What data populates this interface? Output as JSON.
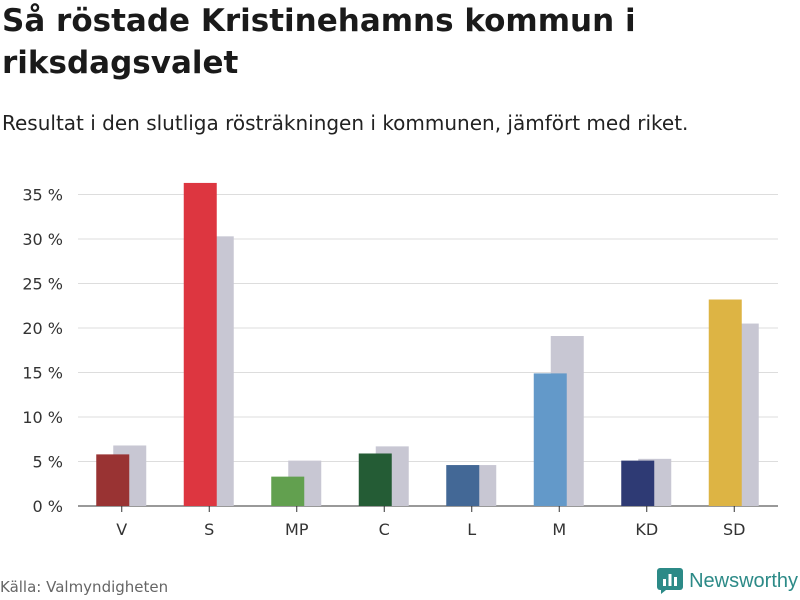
{
  "header": {
    "title": "Så röstade Kristinehamns kommun i riksdagsvalet",
    "subtitle": "Resultat i den slutliga rösträkningen i kommunen, jämfört med riket."
  },
  "footer": {
    "source": "Källa: Valmyndigheten",
    "brand": "Newsworthy",
    "brand_icon": "bar-chart-icon",
    "brand_color": "#2c8a87"
  },
  "chart_data": {
    "type": "bar",
    "categories": [
      "V",
      "S",
      "MP",
      "C",
      "L",
      "M",
      "KD",
      "SD"
    ],
    "series": [
      {
        "name": "Kommunen",
        "values": [
          5.8,
          36.3,
          3.3,
          5.9,
          4.6,
          14.9,
          5.1,
          23.2
        ],
        "colors": [
          "#993333",
          "#dd3640",
          "#62a04f",
          "#245c35",
          "#436896",
          "#6399c9",
          "#2e3a74",
          "#ddb444"
        ]
      },
      {
        "name": "Riket",
        "values": [
          6.8,
          30.3,
          5.1,
          6.7,
          4.6,
          19.1,
          5.3,
          20.5
        ],
        "color": "#c8c7d3"
      }
    ],
    "yticks": [
      "0 %",
      "5 %",
      "10 %",
      "15 %",
      "20 %",
      "25 %",
      "30 %",
      "35 %"
    ],
    "ylim": [
      0,
      35
    ],
    "grid": true
  }
}
